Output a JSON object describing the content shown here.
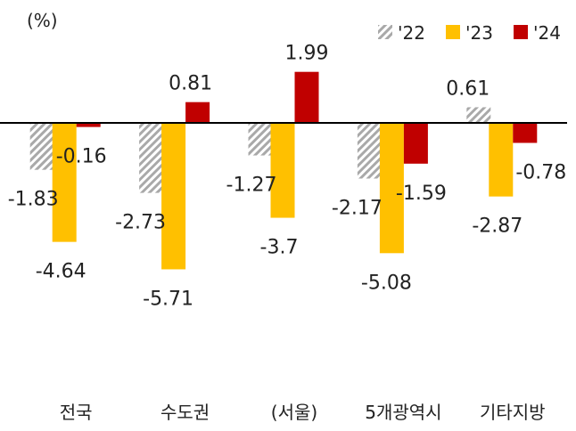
{
  "chart_data": {
    "type": "bar",
    "unit_label": "(%)",
    "categories": [
      "전국",
      "수도권",
      "(서울)",
      "5개광역시",
      "기타지방"
    ],
    "series": [
      {
        "name": "'22",
        "values": [
          -1.83,
          -2.73,
          -1.27,
          -2.17,
          0.61
        ],
        "color": "#a9a9a9",
        "pattern": "hatch"
      },
      {
        "name": "'23",
        "values": [
          -4.64,
          -5.71,
          -3.7,
          -5.08,
          -2.87
        ],
        "color": "#ffc000",
        "pattern": "solid"
      },
      {
        "name": "'24",
        "values": [
          -0.16,
          0.81,
          1.99,
          -1.59,
          -0.78
        ],
        "color": "#c00000",
        "pattern": "solid"
      }
    ],
    "data_labels": [
      [
        "-1.83",
        "-2.73",
        "-1.27",
        "-2.17",
        "0.61"
      ],
      [
        "-4.64",
        "-5.71",
        "-3.7",
        "-5.08",
        "-2.87"
      ],
      [
        "-0.16",
        "0.81",
        "1.99",
        "-1.59",
        "-0.78"
      ]
    ],
    "ylim": [
      -6.5,
      2.8
    ],
    "legend_position": "top-right",
    "grid": false
  }
}
